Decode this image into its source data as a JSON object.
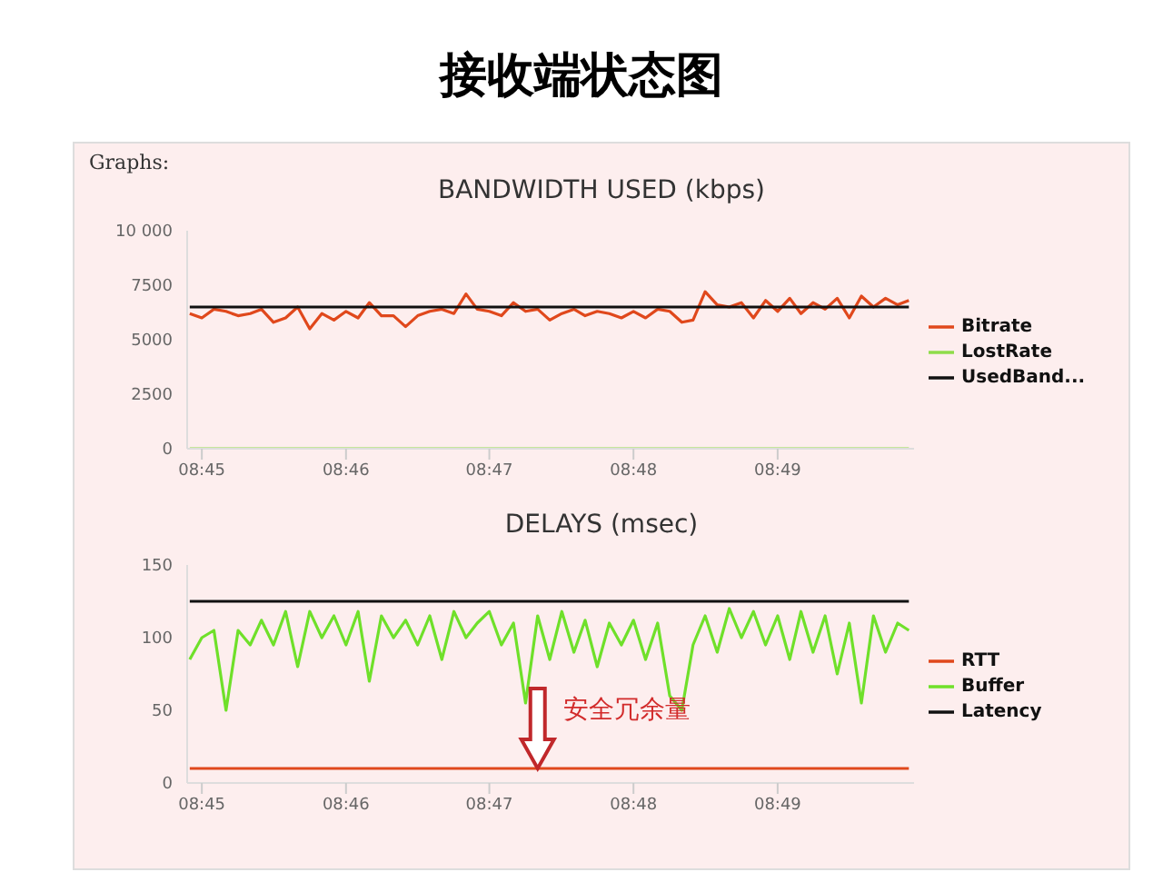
{
  "chart_data": [
    {
      "type": "line",
      "title": "BANDWIDTH USED (kbps)",
      "annotations": [
        "接收端状态图",
        "Graphs:"
      ],
      "x": [
        8.7486,
        8.75,
        8.7514,
        8.7528,
        8.7542,
        8.7556,
        8.7569,
        8.7583,
        8.7597,
        8.7611,
        8.7625,
        8.7639,
        8.7653,
        8.7667,
        8.7681,
        8.7694,
        8.7708,
        8.7722,
        8.7736,
        8.775,
        8.7764,
        8.7778,
        8.7792,
        8.7806,
        8.7819,
        8.7833,
        8.7847,
        8.7861,
        8.7875,
        8.7889,
        8.7903,
        8.7917,
        8.7931,
        8.7944,
        8.7958,
        8.7972,
        8.7986,
        8.8,
        8.8014,
        8.8028,
        8.8042,
        8.8056,
        8.8069,
        8.8083,
        8.8097,
        8.8111,
        8.8125,
        8.8139,
        8.8153,
        8.8167,
        8.8181,
        8.8194,
        8.8208,
        8.8222,
        8.8236,
        8.825,
        8.8264,
        8.8278,
        8.8292,
        8.8306,
        8.8319
      ],
      "series": [
        {
          "name": "Bitrate",
          "color": "#e0481c",
          "values": [
            6200,
            6000,
            6400,
            6300,
            6100,
            6200,
            6400,
            5800,
            6000,
            6500,
            5500,
            6200,
            5900,
            6300,
            6000,
            6700,
            6100,
            6100,
            5600,
            6100,
            6300,
            6400,
            6200,
            7100,
            6400,
            6300,
            6100,
            6700,
            6300,
            6400,
            5900,
            6200,
            6400,
            6100,
            6300,
            6200,
            6000,
            6300,
            6000,
            6400,
            6300,
            5800,
            5900,
            7200,
            6600,
            6500,
            6700,
            6000,
            6800,
            6300,
            6900,
            6200,
            6700,
            6400,
            6900,
            6000,
            7000,
            6500,
            6900,
            6600,
            6800
          ]
        },
        {
          "name": "LostRate",
          "color": "#8fdc4a",
          "values": [
            0,
            0,
            0,
            0,
            0,
            0,
            0,
            0,
            0,
            0,
            0,
            0,
            0,
            0,
            0,
            0,
            0,
            0,
            0,
            0,
            0,
            0,
            0,
            0,
            0,
            0,
            0,
            0,
            0,
            0,
            0,
            0,
            0,
            0,
            0,
            0,
            0,
            0,
            0,
            0,
            0,
            0,
            0,
            0,
            0,
            0,
            0,
            0,
            0,
            0,
            0,
            0,
            0,
            0,
            0,
            0,
            0,
            0,
            0,
            0,
            0
          ]
        },
        {
          "name": "UsedBand...",
          "color": "#111111",
          "values": [
            6500,
            6500,
            6500,
            6500,
            6500,
            6500,
            6500,
            6500,
            6500,
            6500,
            6500,
            6500,
            6500,
            6500,
            6500,
            6500,
            6500,
            6500,
            6500,
            6500,
            6500,
            6500,
            6500,
            6500,
            6500,
            6500,
            6500,
            6500,
            6500,
            6500,
            6500,
            6500,
            6500,
            6500,
            6500,
            6500,
            6500,
            6500,
            6500,
            6500,
            6500,
            6500,
            6500,
            6500,
            6500,
            6500,
            6500,
            6500,
            6500,
            6500,
            6500,
            6500,
            6500,
            6500,
            6500,
            6500,
            6500,
            6500,
            6500,
            6500,
            6500
          ]
        }
      ],
      "xlim": [
        8.7483,
        8.8325
      ],
      "xticks": [
        {
          "value": 8.75,
          "label": "08:45"
        },
        {
          "value": 8.7667,
          "label": "08:46"
        },
        {
          "value": 8.7833,
          "label": "08:47"
        },
        {
          "value": 8.8,
          "label": "08:48"
        },
        {
          "value": 8.8167,
          "label": "08:49"
        }
      ],
      "ylim": [
        0,
        10000
      ],
      "yticks": [
        0,
        2500,
        5000,
        7500,
        {
          "value": 10000,
          "label": "10 000"
        }
      ],
      "grid": false,
      "legend": "right"
    },
    {
      "type": "line",
      "title": "DELAYS (msec)",
      "annotations": [
        {
          "text": "安全冗余量",
          "x": 8.7889,
          "y": 10
        }
      ],
      "x": [
        8.7486,
        8.75,
        8.7514,
        8.7528,
        8.7542,
        8.7556,
        8.7569,
        8.7583,
        8.7597,
        8.7611,
        8.7625,
        8.7639,
        8.7653,
        8.7667,
        8.7681,
        8.7694,
        8.7708,
        8.7722,
        8.7736,
        8.775,
        8.7764,
        8.7778,
        8.7792,
        8.7806,
        8.7819,
        8.7833,
        8.7847,
        8.7861,
        8.7875,
        8.7889,
        8.7903,
        8.7917,
        8.7931,
        8.7944,
        8.7958,
        8.7972,
        8.7986,
        8.8,
        8.8014,
        8.8028,
        8.8042,
        8.8056,
        8.8069,
        8.8083,
        8.8097,
        8.8111,
        8.8125,
        8.8139,
        8.8153,
        8.8167,
        8.8181,
        8.8194,
        8.8208,
        8.8222,
        8.8236,
        8.825,
        8.8264,
        8.8278,
        8.8292,
        8.8306,
        8.8319
      ],
      "series": [
        {
          "name": "RTT",
          "color": "#e0481c",
          "values": [
            10,
            10,
            10,
            10,
            10,
            10,
            10,
            10,
            10,
            10,
            10,
            10,
            10,
            10,
            10,
            10,
            10,
            10,
            10,
            10,
            10,
            10,
            10,
            10,
            10,
            10,
            10,
            10,
            10,
            10,
            10,
            10,
            10,
            10,
            10,
            10,
            10,
            10,
            10,
            10,
            10,
            10,
            10,
            10,
            10,
            10,
            10,
            10,
            10,
            10,
            10,
            10,
            10,
            10,
            10,
            10,
            10,
            10,
            10,
            10,
            10
          ]
        },
        {
          "name": "Buffer",
          "color": "#6fe02a",
          "values": [
            85,
            100,
            105,
            50,
            105,
            95,
            112,
            95,
            118,
            80,
            118,
            100,
            115,
            95,
            118,
            70,
            115,
            100,
            112,
            95,
            115,
            85,
            118,
            100,
            110,
            118,
            95,
            110,
            55,
            115,
            85,
            118,
            90,
            112,
            80,
            110,
            95,
            112,
            85,
            110,
            60,
            50,
            95,
            115,
            90,
            120,
            100,
            118,
            95,
            115,
            85,
            118,
            90,
            115,
            75,
            110,
            55,
            115,
            90,
            110,
            105
          ]
        },
        {
          "name": "Latency",
          "color": "#111111",
          "values": [
            125,
            125,
            125,
            125,
            125,
            125,
            125,
            125,
            125,
            125,
            125,
            125,
            125,
            125,
            125,
            125,
            125,
            125,
            125,
            125,
            125,
            125,
            125,
            125,
            125,
            125,
            125,
            125,
            125,
            125,
            125,
            125,
            125,
            125,
            125,
            125,
            125,
            125,
            125,
            125,
            125,
            125,
            125,
            125,
            125,
            125,
            125,
            125,
            125,
            125,
            125,
            125,
            125,
            125,
            125,
            125,
            125,
            125,
            125,
            125,
            125
          ]
        }
      ],
      "xlim": [
        8.7483,
        8.8325
      ],
      "xticks": [
        {
          "value": 8.75,
          "label": "08:45"
        },
        {
          "value": 8.7667,
          "label": "08:46"
        },
        {
          "value": 8.7833,
          "label": "08:47"
        },
        {
          "value": 8.8,
          "label": "08:48"
        },
        {
          "value": 8.8167,
          "label": "08:49"
        }
      ],
      "ylim": [
        0,
        150
      ],
      "yticks": [
        0,
        50,
        100,
        150
      ],
      "grid": false,
      "legend": "right"
    }
  ]
}
